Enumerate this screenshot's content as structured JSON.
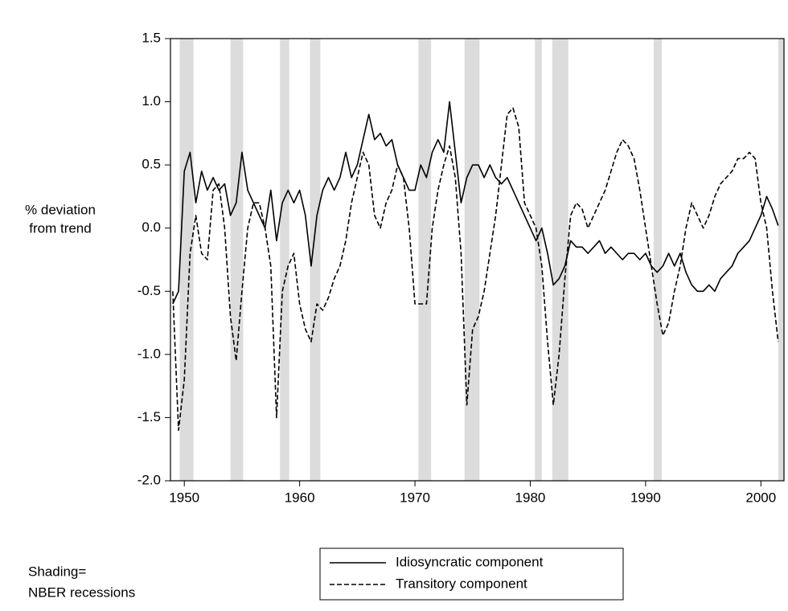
{
  "chart_data": {
    "type": "line",
    "ylabel": [
      "% deviation",
      "from trend"
    ],
    "note": [
      "Shading=",
      "NBER recessions"
    ],
    "xlim": [
      1948.8,
      2002
    ],
    "xticks": [
      1950,
      1960,
      1970,
      1980,
      1990,
      2000
    ],
    "ylim": [
      -2,
      1.5
    ],
    "yticks": [
      {
        "value": -2,
        "label": "-2.0"
      },
      -1.5,
      {
        "value": -1,
        "label": "-1.0"
      },
      -0.5,
      {
        "value": 0,
        "label": "0.0"
      },
      0.5,
      {
        "value": 1,
        "label": "1.0"
      },
      1.5
    ],
    "shading": [
      [
        1949.6,
        1950.8
      ],
      [
        1954.0,
        1955.1
      ],
      [
        1958.3,
        1959.1
      ],
      [
        1960.9,
        1961.8
      ],
      [
        1970.3,
        1971.4
      ],
      [
        1974.3,
        1975.6
      ],
      [
        1980.4,
        1981.0
      ],
      [
        1981.9,
        1983.3
      ],
      [
        1990.7,
        1991.4
      ],
      [
        2001.5,
        2002.0
      ]
    ],
    "shading_color": "#dcdcdc",
    "x": [
      1949,
      1949.5,
      1950,
      1950.5,
      1951,
      1951.5,
      1952,
      1952.5,
      1953,
      1953.5,
      1954,
      1954.5,
      1955,
      1955.5,
      1956,
      1956.5,
      1957,
      1957.5,
      1958,
      1958.5,
      1959,
      1959.5,
      1960,
      1960.5,
      1961,
      1961.5,
      1962,
      1962.5,
      1963,
      1963.5,
      1964,
      1964.5,
      1965,
      1965.5,
      1966,
      1966.5,
      1967,
      1967.5,
      1968,
      1968.5,
      1969,
      1969.5,
      1970,
      1970.5,
      1971,
      1971.5,
      1972,
      1972.5,
      1973,
      1973.5,
      1974,
      1974.5,
      1975,
      1975.5,
      1976,
      1976.5,
      1977,
      1977.5,
      1978,
      1978.5,
      1979,
      1979.5,
      1980,
      1980.5,
      1981,
      1981.5,
      1982,
      1982.5,
      1983,
      1983.5,
      1984,
      1984.5,
      1985,
      1985.5,
      1986,
      1986.5,
      1987,
      1987.5,
      1988,
      1988.5,
      1989,
      1989.5,
      1990,
      1990.5,
      1991,
      1991.5,
      1992,
      1992.5,
      1993,
      1993.5,
      1994,
      1994.5,
      1995,
      1995.5,
      1996,
      1996.5,
      1997,
      1997.5,
      1998,
      1998.5,
      1999,
      1999.5,
      2000,
      2000.5,
      2001,
      2001.5
    ],
    "series": [
      {
        "name": "Idiosyncratic component",
        "color": "#000000",
        "dash": false,
        "values": [
          -0.6,
          -0.5,
          0.45,
          0.6,
          0.2,
          0.45,
          0.3,
          0.4,
          0.3,
          0.35,
          0.1,
          0.2,
          0.6,
          0.3,
          0.2,
          0.1,
          0.0,
          0.3,
          -0.1,
          0.2,
          0.3,
          0.2,
          0.3,
          0.1,
          -0.3,
          0.1,
          0.3,
          0.4,
          0.3,
          0.4,
          0.6,
          0.4,
          0.5,
          0.7,
          0.9,
          0.7,
          0.75,
          0.65,
          0.7,
          0.5,
          0.4,
          0.3,
          0.3,
          0.5,
          0.4,
          0.6,
          0.7,
          0.6,
          1.0,
          0.6,
          0.2,
          0.4,
          0.5,
          0.5,
          0.4,
          0.5,
          0.4,
          0.35,
          0.4,
          0.3,
          0.2,
          0.1,
          0.0,
          -0.1,
          0.0,
          -0.2,
          -0.45,
          -0.4,
          -0.3,
          -0.1,
          -0.15,
          -0.15,
          -0.2,
          -0.15,
          -0.1,
          -0.2,
          -0.15,
          -0.2,
          -0.25,
          -0.2,
          -0.2,
          -0.25,
          -0.2,
          -0.3,
          -0.35,
          -0.3,
          -0.2,
          -0.3,
          -0.2,
          -0.35,
          -0.45,
          -0.5,
          -0.5,
          -0.45,
          -0.5,
          -0.4,
          -0.35,
          -0.3,
          -0.2,
          -0.15,
          -0.1,
          0.0,
          0.1,
          0.25,
          0.15,
          0.02
        ]
      },
      {
        "name": "Transitory component",
        "color": "#000000",
        "dash": true,
        "values": [
          -0.5,
          -1.6,
          -1.2,
          -0.2,
          0.1,
          -0.2,
          -0.25,
          0.3,
          0.35,
          0.0,
          -0.7,
          -1.05,
          -0.5,
          0.0,
          0.2,
          0.2,
          0.0,
          -0.3,
          -1.5,
          -0.5,
          -0.3,
          -0.2,
          -0.6,
          -0.8,
          -0.9,
          -0.6,
          -0.65,
          -0.55,
          -0.4,
          -0.3,
          -0.1,
          0.2,
          0.4,
          0.6,
          0.5,
          0.1,
          0.0,
          0.2,
          0.3,
          0.5,
          0.4,
          0.0,
          -0.6,
          -0.6,
          -0.6,
          0.0,
          0.3,
          0.5,
          0.65,
          0.4,
          -0.2,
          -1.4,
          -0.8,
          -0.7,
          -0.5,
          -0.2,
          0.1,
          0.5,
          0.9,
          0.95,
          0.8,
          0.2,
          0.1,
          0.0,
          -0.3,
          -0.9,
          -1.4,
          -1.0,
          -0.4,
          0.1,
          0.2,
          0.15,
          0.0,
          0.1,
          0.2,
          0.3,
          0.45,
          0.6,
          0.7,
          0.65,
          0.55,
          0.3,
          0.0,
          -0.3,
          -0.6,
          -0.85,
          -0.75,
          -0.5,
          -0.3,
          0.0,
          0.2,
          0.1,
          0.0,
          0.1,
          0.25,
          0.35,
          0.4,
          0.45,
          0.55,
          0.55,
          0.6,
          0.55,
          0.2,
          0.0,
          -0.5,
          -0.9
        ]
      }
    ]
  }
}
